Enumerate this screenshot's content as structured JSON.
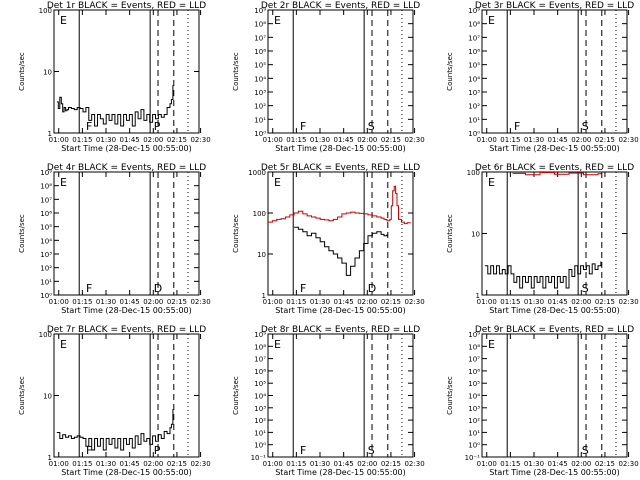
{
  "figure": {
    "ylabel": "Counts/sec",
    "xlabel": "Start Time (28-Dec-15 00:55:00)",
    "x_ticks": [
      "01:00",
      "01:15",
      "01:30",
      "01:45",
      "02:00",
      "02:15",
      "02:30"
    ],
    "colors": {
      "events": "#000000",
      "lld": "#cc0000"
    }
  },
  "chart_data": [
    {
      "type": "line",
      "title": "Det 1r BLACK = Events, RED = LLD",
      "ylog": true,
      "ylim": [
        1,
        100
      ],
      "y_ticks": [
        {
          "v": 1,
          "label": "1"
        },
        {
          "v": 10,
          "label": "10"
        },
        {
          "v": 100,
          "label": "100"
        }
      ],
      "markers": [
        "E",
        "F",
        "P"
      ],
      "series": [
        {
          "color": "events",
          "x": [
            2,
            3,
            4,
            5,
            6,
            7,
            8,
            9,
            10,
            12,
            14,
            16,
            18,
            20,
            22,
            24,
            26,
            28,
            30,
            32,
            34,
            36,
            38,
            40,
            42,
            44,
            46,
            48,
            50,
            52,
            54,
            56,
            58,
            60,
            62,
            64,
            66,
            68,
            70,
            72,
            74,
            76,
            78,
            80,
            81,
            82
          ],
          "y": [
            3.2,
            2.5,
            3.8,
            3,
            2.2,
            2.6,
            2.3,
            2.4,
            2.6,
            2.5,
            2.4,
            2.6,
            2.5,
            2.2,
            2.6,
            1.6,
            2,
            1.3,
            2,
            1.7,
            1.4,
            2,
            1.6,
            2,
            1.4,
            2,
            1.3,
            2,
            1.6,
            2,
            1.3,
            2.2,
            1.7,
            2.4,
            1.6,
            2,
            1.5,
            2,
            1.7,
            2,
            1.8,
            2,
            2.6,
            3,
            3.5,
            6
          ]
        }
      ]
    },
    {
      "type": "line",
      "title": "Det 2r BLACK = Events, RED = LLD",
      "ylog": true,
      "ylim": [
        1,
        1000000000.0
      ],
      "y_ticks": [
        {
          "v": 1,
          "label": "10⁰"
        },
        {
          "v": 10,
          "label": "10¹"
        },
        {
          "v": 100,
          "label": "10²"
        },
        {
          "v": 1000,
          "label": "10³"
        },
        {
          "v": 10000,
          "label": "10⁴"
        },
        {
          "v": 100000,
          "label": "10⁵"
        },
        {
          "v": 1000000,
          "label": "10⁶"
        },
        {
          "v": 10000000,
          "label": "10⁷"
        },
        {
          "v": 100000000,
          "label": "10⁸"
        },
        {
          "v": 1000000000,
          "label": "10⁹"
        }
      ],
      "markers": [
        "E",
        "F",
        "S"
      ],
      "series": []
    },
    {
      "type": "line",
      "title": "Det 3r BLACK = Events, RED = LLD",
      "ylog": true,
      "ylim": [
        1,
        1000000000.0
      ],
      "y_ticks": [
        {
          "v": 1,
          "label": "10⁰"
        },
        {
          "v": 10,
          "label": "10¹"
        },
        {
          "v": 100,
          "label": "10²"
        },
        {
          "v": 1000,
          "label": "10³"
        },
        {
          "v": 10000,
          "label": "10⁴"
        },
        {
          "v": 100000,
          "label": "10⁵"
        },
        {
          "v": 1000000,
          "label": "10⁶"
        },
        {
          "v": 10000000,
          "label": "10⁷"
        },
        {
          "v": 100000000,
          "label": "10⁸"
        },
        {
          "v": 1000000000,
          "label": "10⁹"
        }
      ],
      "markers": [
        "E",
        "F",
        "S"
      ],
      "series": []
    },
    {
      "type": "line",
      "title": "Det 4r BLACK = Events, RED = LLD",
      "ylog": true,
      "ylim": [
        1,
        1000000000.0
      ],
      "y_ticks": [
        {
          "v": 1,
          "label": "10⁰"
        },
        {
          "v": 10,
          "label": "10¹"
        },
        {
          "v": 100,
          "label": "10²"
        },
        {
          "v": 1000,
          "label": "10³"
        },
        {
          "v": 10000,
          "label": "10⁴"
        },
        {
          "v": 100000,
          "label": "10⁵"
        },
        {
          "v": 1000000,
          "label": "10⁶"
        },
        {
          "v": 10000000,
          "label": "10⁷"
        },
        {
          "v": 100000000,
          "label": "10⁸"
        },
        {
          "v": 1000000000,
          "label": "10⁹"
        }
      ],
      "markers": [
        "E",
        "F",
        "D"
      ],
      "series": []
    },
    {
      "type": "line",
      "title": "Det 5r BLACK = Events, RED = LLD",
      "ylog": true,
      "ylim": [
        1,
        1000
      ],
      "y_ticks": [
        {
          "v": 1,
          "label": "1"
        },
        {
          "v": 10,
          "label": "10"
        },
        {
          "v": 100,
          "label": "100"
        },
        {
          "v": 1000,
          "label": "1000"
        }
      ],
      "markers": [
        "E",
        "F",
        "D"
      ],
      "series": [
        {
          "color": "lld",
          "x": [
            0,
            3,
            6,
            9,
            12,
            15,
            18,
            21,
            24,
            27,
            30,
            33,
            36,
            39,
            42,
            45,
            48,
            51,
            54,
            57,
            60,
            63,
            66,
            69,
            72,
            75,
            78,
            80,
            82,
            84,
            85,
            86,
            87,
            88,
            89,
            90,
            92,
            94,
            96,
            98
          ],
          "y": [
            60,
            65,
            70,
            72,
            80,
            90,
            100,
            110,
            95,
            85,
            80,
            75,
            70,
            68,
            65,
            70,
            80,
            95,
            100,
            105,
            100,
            98,
            95,
            90,
            85,
            80,
            75,
            70,
            65,
            70,
            150,
            350,
            450,
            300,
            150,
            70,
            60,
            55,
            58,
            60
          ]
        },
        {
          "color": "events",
          "x": [
            18,
            21,
            24,
            27,
            30,
            33,
            36,
            39,
            42,
            45,
            48,
            51,
            54,
            57,
            60,
            63,
            66,
            69,
            72,
            75,
            78,
            80,
            82
          ],
          "y": [
            45,
            40,
            35,
            28,
            32,
            25,
            20,
            15,
            12,
            10,
            8,
            6,
            3,
            5,
            8,
            12,
            18,
            28,
            32,
            35,
            30,
            28,
            30
          ]
        }
      ]
    },
    {
      "type": "line",
      "title": "Det 6r BLACK = Events, RED = LLD",
      "ylog": true,
      "ylim": [
        1,
        100
      ],
      "y_ticks": [
        {
          "v": 1,
          "label": "1"
        },
        {
          "v": 10,
          "label": "10"
        },
        {
          "v": 100,
          "label": "100"
        }
      ],
      "markers": [
        "E",
        "S"
      ],
      "series": [
        {
          "color": "lld",
          "x": [
            21,
            30,
            40,
            50,
            60,
            70,
            80,
            82
          ],
          "y": [
            95,
            90,
            98,
            92,
            96,
            90,
            94,
            96
          ]
        },
        {
          "color": "events",
          "x": [
            2,
            4,
            6,
            8,
            10,
            12,
            14,
            16,
            18,
            20,
            22,
            24,
            26,
            28,
            30,
            32,
            34,
            36,
            38,
            40,
            42,
            44,
            46,
            48,
            50,
            52,
            54,
            56,
            58,
            60,
            62,
            64,
            66,
            68,
            70,
            72,
            74,
            76,
            78,
            80,
            82
          ],
          "y": [
            3,
            2.2,
            3,
            2.2,
            3,
            2.2,
            2.6,
            2.2,
            3,
            2.2,
            1.6,
            2,
            1.3,
            2,
            1.6,
            2,
            1.3,
            2,
            1.6,
            2,
            1.3,
            2,
            1.6,
            2,
            1.3,
            2,
            1.6,
            2,
            1.3,
            2.6,
            2,
            3,
            2.2,
            3,
            2.6,
            3,
            2.2,
            3.2,
            2.6,
            3,
            3.5
          ]
        }
      ]
    },
    {
      "type": "line",
      "title": "Det 7r BLACK = Events, RED = LLD",
      "ylog": true,
      "ylim": [
        1,
        100
      ],
      "y_ticks": [
        {
          "v": 1,
          "label": "1"
        },
        {
          "v": 10,
          "label": "10"
        },
        {
          "v": 100,
          "label": "100"
        }
      ],
      "markers": [
        "E",
        "F",
        "P"
      ],
      "series": [
        {
          "color": "events",
          "x": [
            2,
            4,
            6,
            8,
            10,
            12,
            14,
            16,
            18,
            20,
            22,
            24,
            26,
            28,
            30,
            32,
            34,
            36,
            38,
            40,
            42,
            44,
            46,
            48,
            50,
            52,
            54,
            56,
            58,
            60,
            62,
            64,
            66,
            68,
            70,
            72,
            74,
            76,
            78,
            80,
            81,
            82
          ],
          "y": [
            2.5,
            2,
            2.3,
            2.1,
            2.2,
            2,
            2.1,
            2.2,
            2.1,
            2,
            1.5,
            2,
            1.3,
            2,
            1.5,
            2,
            1.3,
            2,
            1.6,
            2,
            1.4,
            2,
            1.3,
            2,
            1.6,
            2,
            1.4,
            2.2,
            1.6,
            2.4,
            1.8,
            2,
            1.6,
            2.2,
            1.8,
            2.3,
            2,
            2.6,
            2.4,
            3,
            3.4,
            6
          ]
        }
      ]
    },
    {
      "type": "line",
      "title": "Det 8r BLACK = Events, RED = LLD",
      "ylog": true,
      "ylim": [
        0.1,
        1000000000.0
      ],
      "y_ticks": [
        {
          "v": 0.1,
          "label": "10⁻¹"
        },
        {
          "v": 1,
          "label": "10⁰"
        },
        {
          "v": 10,
          "label": "10¹"
        },
        {
          "v": 100,
          "label": "10²"
        },
        {
          "v": 1000,
          "label": "10³"
        },
        {
          "v": 10000,
          "label": "10⁴"
        },
        {
          "v": 100000,
          "label": "10⁵"
        },
        {
          "v": 1000000,
          "label": "10⁶"
        },
        {
          "v": 10000000,
          "label": "10⁷"
        },
        {
          "v": 100000000,
          "label": "10⁸"
        },
        {
          "v": 1000000000,
          "label": "10⁹"
        }
      ],
      "markers": [
        "E",
        "F",
        "S"
      ],
      "series": []
    },
    {
      "type": "line",
      "title": "Det 9r BLACK = Events, RED = LLD",
      "ylog": true,
      "ylim": [
        0.1,
        1000000000.0
      ],
      "y_ticks": [
        {
          "v": 0.1,
          "label": "10⁻¹"
        },
        {
          "v": 1,
          "label": "10⁰"
        },
        {
          "v": 10,
          "label": "10¹"
        },
        {
          "v": 100,
          "label": "10²"
        },
        {
          "v": 1000,
          "label": "10³"
        },
        {
          "v": 10000,
          "label": "10⁴"
        },
        {
          "v": 100000,
          "label": "10⁵"
        },
        {
          "v": 1000000,
          "label": "10⁶"
        },
        {
          "v": 10000000,
          "label": "10⁷"
        },
        {
          "v": 100000000,
          "label": "10⁸"
        },
        {
          "v": 1000000000,
          "label": "10⁹"
        }
      ],
      "markers": [
        "E",
        "S"
      ],
      "series": []
    }
  ]
}
